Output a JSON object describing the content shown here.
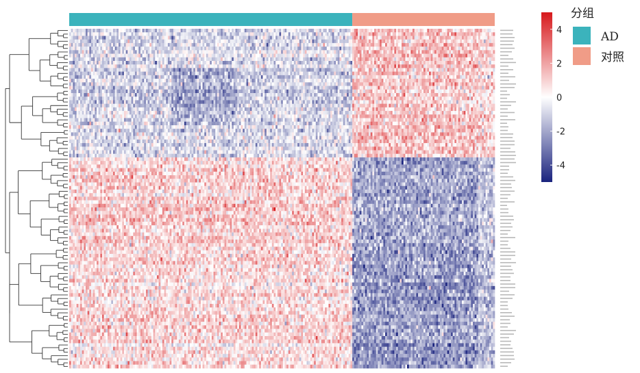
{
  "chart_data": {
    "type": "heatmap",
    "groups": [
      {
        "name": "AD",
        "color": "#3bb3bc",
        "n_samples": 155
      },
      {
        "name": "对照",
        "color": "#f09c87",
        "n_samples": 78
      }
    ],
    "legend": {
      "title": "分组",
      "placement": "right"
    },
    "color_scale": {
      "min": -5,
      "max": 5,
      "ticks": [
        "4",
        "2",
        "0",
        "-2",
        "-4"
      ],
      "tick_values": [
        4,
        2,
        0,
        -2,
        -4
      ],
      "low_color": "#1a237e",
      "mid_color": "#ffffff",
      "high_color": "#d7191c"
    },
    "row_clusters": [
      {
        "id": "up-in-control",
        "rows": 36,
        "AD_mean": -0.9,
        "control_mean": 1.2
      },
      {
        "id": "down-in-control",
        "rows": 59,
        "AD_mean": 0.9,
        "control_mean": -2.1
      }
    ],
    "row_dendrogram": true,
    "row_labels_legible": false
  },
  "colors": {
    "annotation_AD": "#3bb3bc",
    "annotation_control": "#f09c87"
  }
}
